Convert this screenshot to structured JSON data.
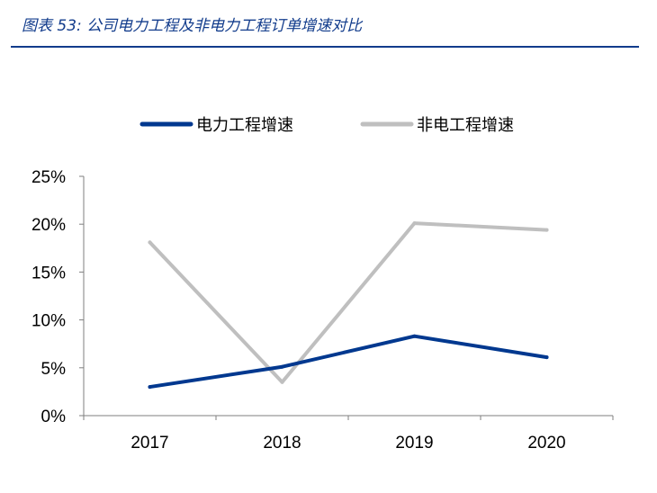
{
  "figure": {
    "title": "图表 53:  公司电力工程及非电力工程订单增速对比"
  },
  "colors": {
    "title": "#123c8c",
    "series_power": "#00388f",
    "series_nonpower": "#bfbfbf",
    "axis": "#7f7f7f"
  },
  "chart_data": {
    "type": "line",
    "title": "",
    "xlabel": "",
    "ylabel": "",
    "categories": [
      "2017",
      "2018",
      "2019",
      "2020"
    ],
    "ylim": [
      0,
      0.25
    ],
    "yticks": [
      "0%",
      "5%",
      "10%",
      "15%",
      "20%",
      "25%"
    ],
    "grid": false,
    "legend_position": "top-center",
    "series": [
      {
        "name": "电力工程增速",
        "values": [
          0.03,
          0.051,
          0.083,
          0.061
        ]
      },
      {
        "name": "非电工程增速",
        "values": [
          0.181,
          0.035,
          0.201,
          0.194
        ]
      }
    ]
  }
}
